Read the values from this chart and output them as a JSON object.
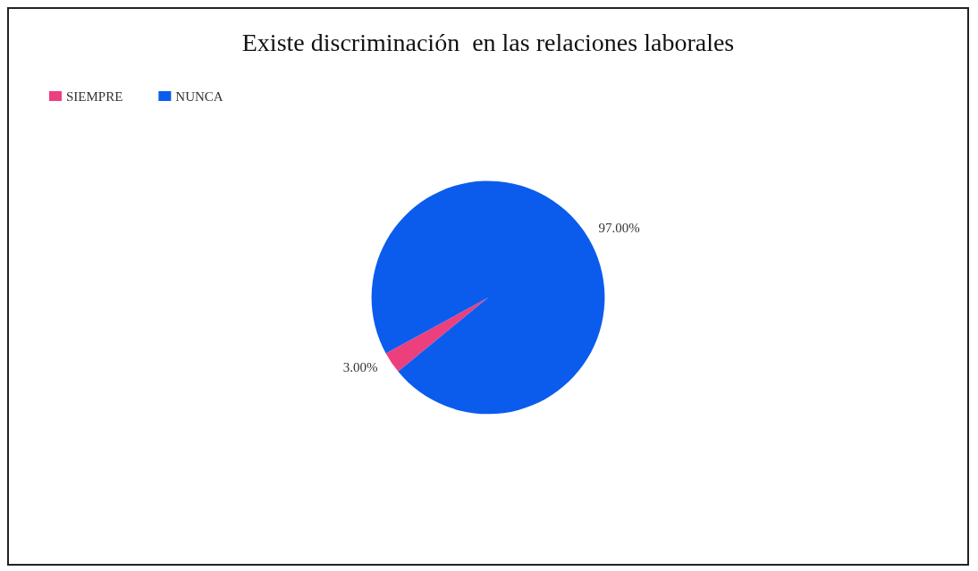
{
  "chart_data": {
    "type": "pie",
    "title": "Existe discriminación  en las relaciones laborales",
    "categories": [
      "SIEMPRE",
      "NUNCA"
    ],
    "values": [
      3,
      97
    ],
    "colors": [
      "#ec3f7e",
      "#0b5ced"
    ],
    "value_labels": [
      "3.00%",
      "97.00%"
    ],
    "legend": "top left"
  }
}
